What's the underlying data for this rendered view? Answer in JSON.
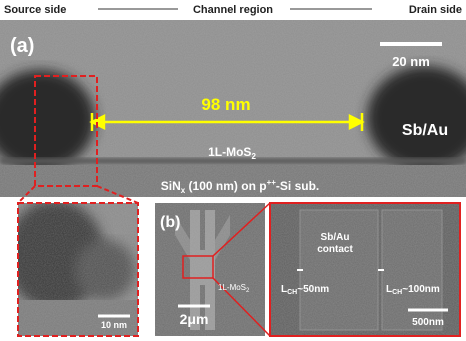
{
  "header": {
    "left": "Source side",
    "center": "Channel region",
    "right": "Drain side"
  },
  "panel_a": {
    "label": "(a)",
    "scale_bar": "20 nm",
    "channel_length": "98 nm",
    "contact": "Sb/Au",
    "channel_layer": [
      {
        "text": "1L-MoS",
        "style": "normal"
      },
      {
        "text": "2",
        "style": "sub"
      }
    ],
    "substrate": [
      {
        "text": "SiN",
        "style": "normal"
      },
      {
        "text": "x",
        "style": "sub"
      },
      {
        "text": " (100 nm) on p",
        "style": "normal"
      },
      {
        "text": "++",
        "style": "sup"
      },
      {
        "text": "-Si sub.",
        "style": "normal"
      }
    ]
  },
  "inset_a": {
    "scale_bar": "10 nm"
  },
  "panel_b": {
    "label": "(b)",
    "scale_bar": "2μm",
    "material": [
      {
        "text": "1L-MoS",
        "style": "normal"
      },
      {
        "text": "2",
        "style": "sub"
      }
    ]
  },
  "inset_b": {
    "contact": [
      "Sb/Au",
      "contact"
    ],
    "lch_short": [
      {
        "text": "L",
        "style": "normal"
      },
      {
        "text": "CH",
        "style": "sub"
      },
      {
        "text": "~50nm",
        "style": "normal"
      }
    ],
    "lch_long": [
      {
        "text": "L",
        "style": "normal"
      },
      {
        "text": "CH",
        "style": "sub"
      },
      {
        "text": "~100nm",
        "style": "normal"
      }
    ],
    "scale_bar": "500nm"
  }
}
